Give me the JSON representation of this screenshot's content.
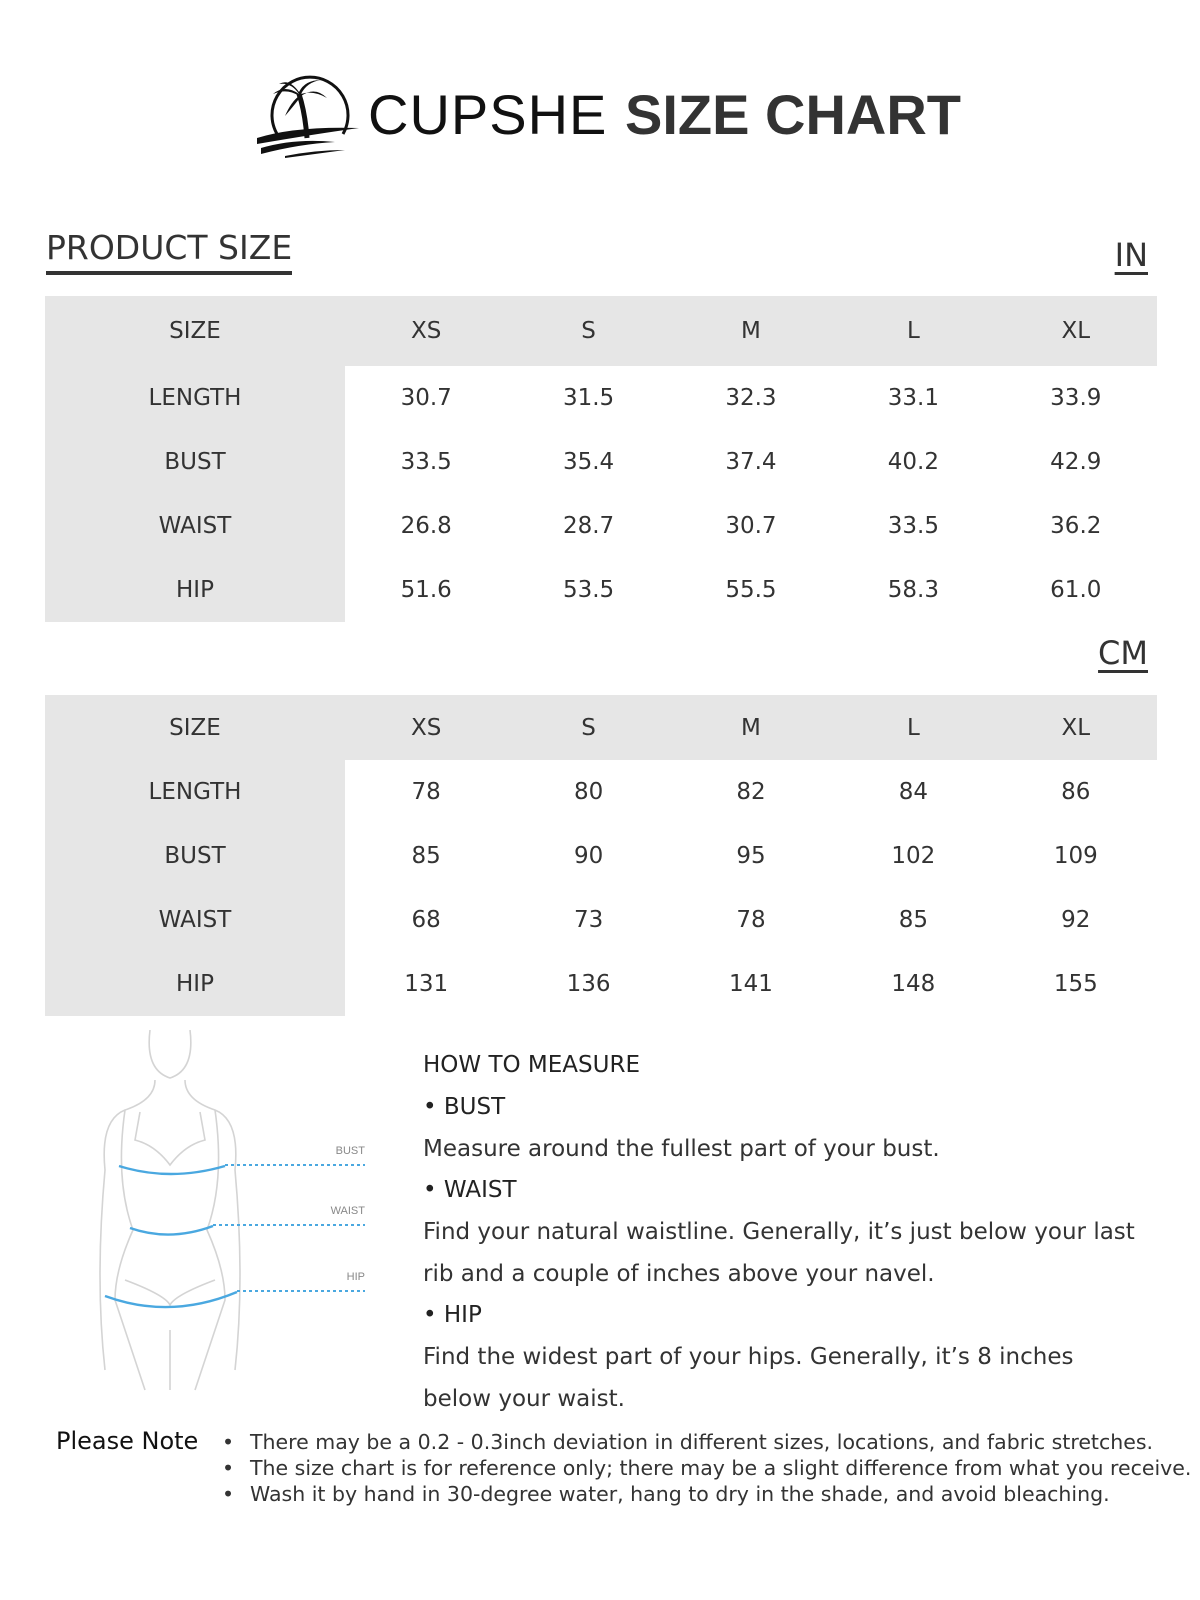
{
  "header": {
    "brand": "CUPSHE",
    "title": "SIZE CHART",
    "logo_icon": "palm-tree-island-icon"
  },
  "section_title": "PRODUCT SIZE",
  "tables": [
    {
      "unit": "IN",
      "columns": [
        "SIZE",
        "XS",
        "S",
        "M",
        "L",
        "XL"
      ],
      "rows": [
        [
          "LENGTH",
          "30.7",
          "31.5",
          "32.3",
          "33.1",
          "33.9"
        ],
        [
          "BUST",
          "33.5",
          "35.4",
          "37.4",
          "40.2",
          "42.9"
        ],
        [
          "WAIST",
          "26.8",
          "28.7",
          "30.7",
          "33.5",
          "36.2"
        ],
        [
          "HIP",
          "51.6",
          "53.5",
          "55.5",
          "58.3",
          "61.0"
        ]
      ]
    },
    {
      "unit": "CM",
      "columns": [
        "SIZE",
        "XS",
        "S",
        "M",
        "L",
        "XL"
      ],
      "rows": [
        [
          "LENGTH",
          "78",
          "80",
          "82",
          "84",
          "86"
        ],
        [
          "BUST",
          "85",
          "90",
          "95",
          "102",
          "109"
        ],
        [
          "WAIST",
          "68",
          "73",
          "78",
          "85",
          "92"
        ],
        [
          "HIP",
          "131",
          "136",
          "141",
          "148",
          "155"
        ]
      ]
    }
  ],
  "figure": {
    "labels": [
      "BUST",
      "WAIST",
      "HIP"
    ],
    "accent": "#4aa8e0"
  },
  "measure": {
    "title": "HOW TO MEASURE",
    "bust_h": "• BUST",
    "bust": "Measure around the fullest part of your bust.",
    "waist_h": "• WAIST",
    "waist1": "Find your natural waistline. Generally, it’s just below your last",
    "waist2": "rib and a couple of inches above your navel.",
    "hip_h": "• HIP",
    "hip1": "Find the widest part of your hips. Generally, it’s 8 inches",
    "hip2": "below your waist."
  },
  "note": {
    "label": "Please Note",
    "items": [
      "There may be a 0.2 - 0.3inch deviation in different sizes, locations, and fabric stretches.",
      "The size chart is for reference only; there may be a slight difference from what you receive.",
      "Wash it by hand in 30-degree water, hang to dry in the shade, and avoid bleaching."
    ]
  }
}
